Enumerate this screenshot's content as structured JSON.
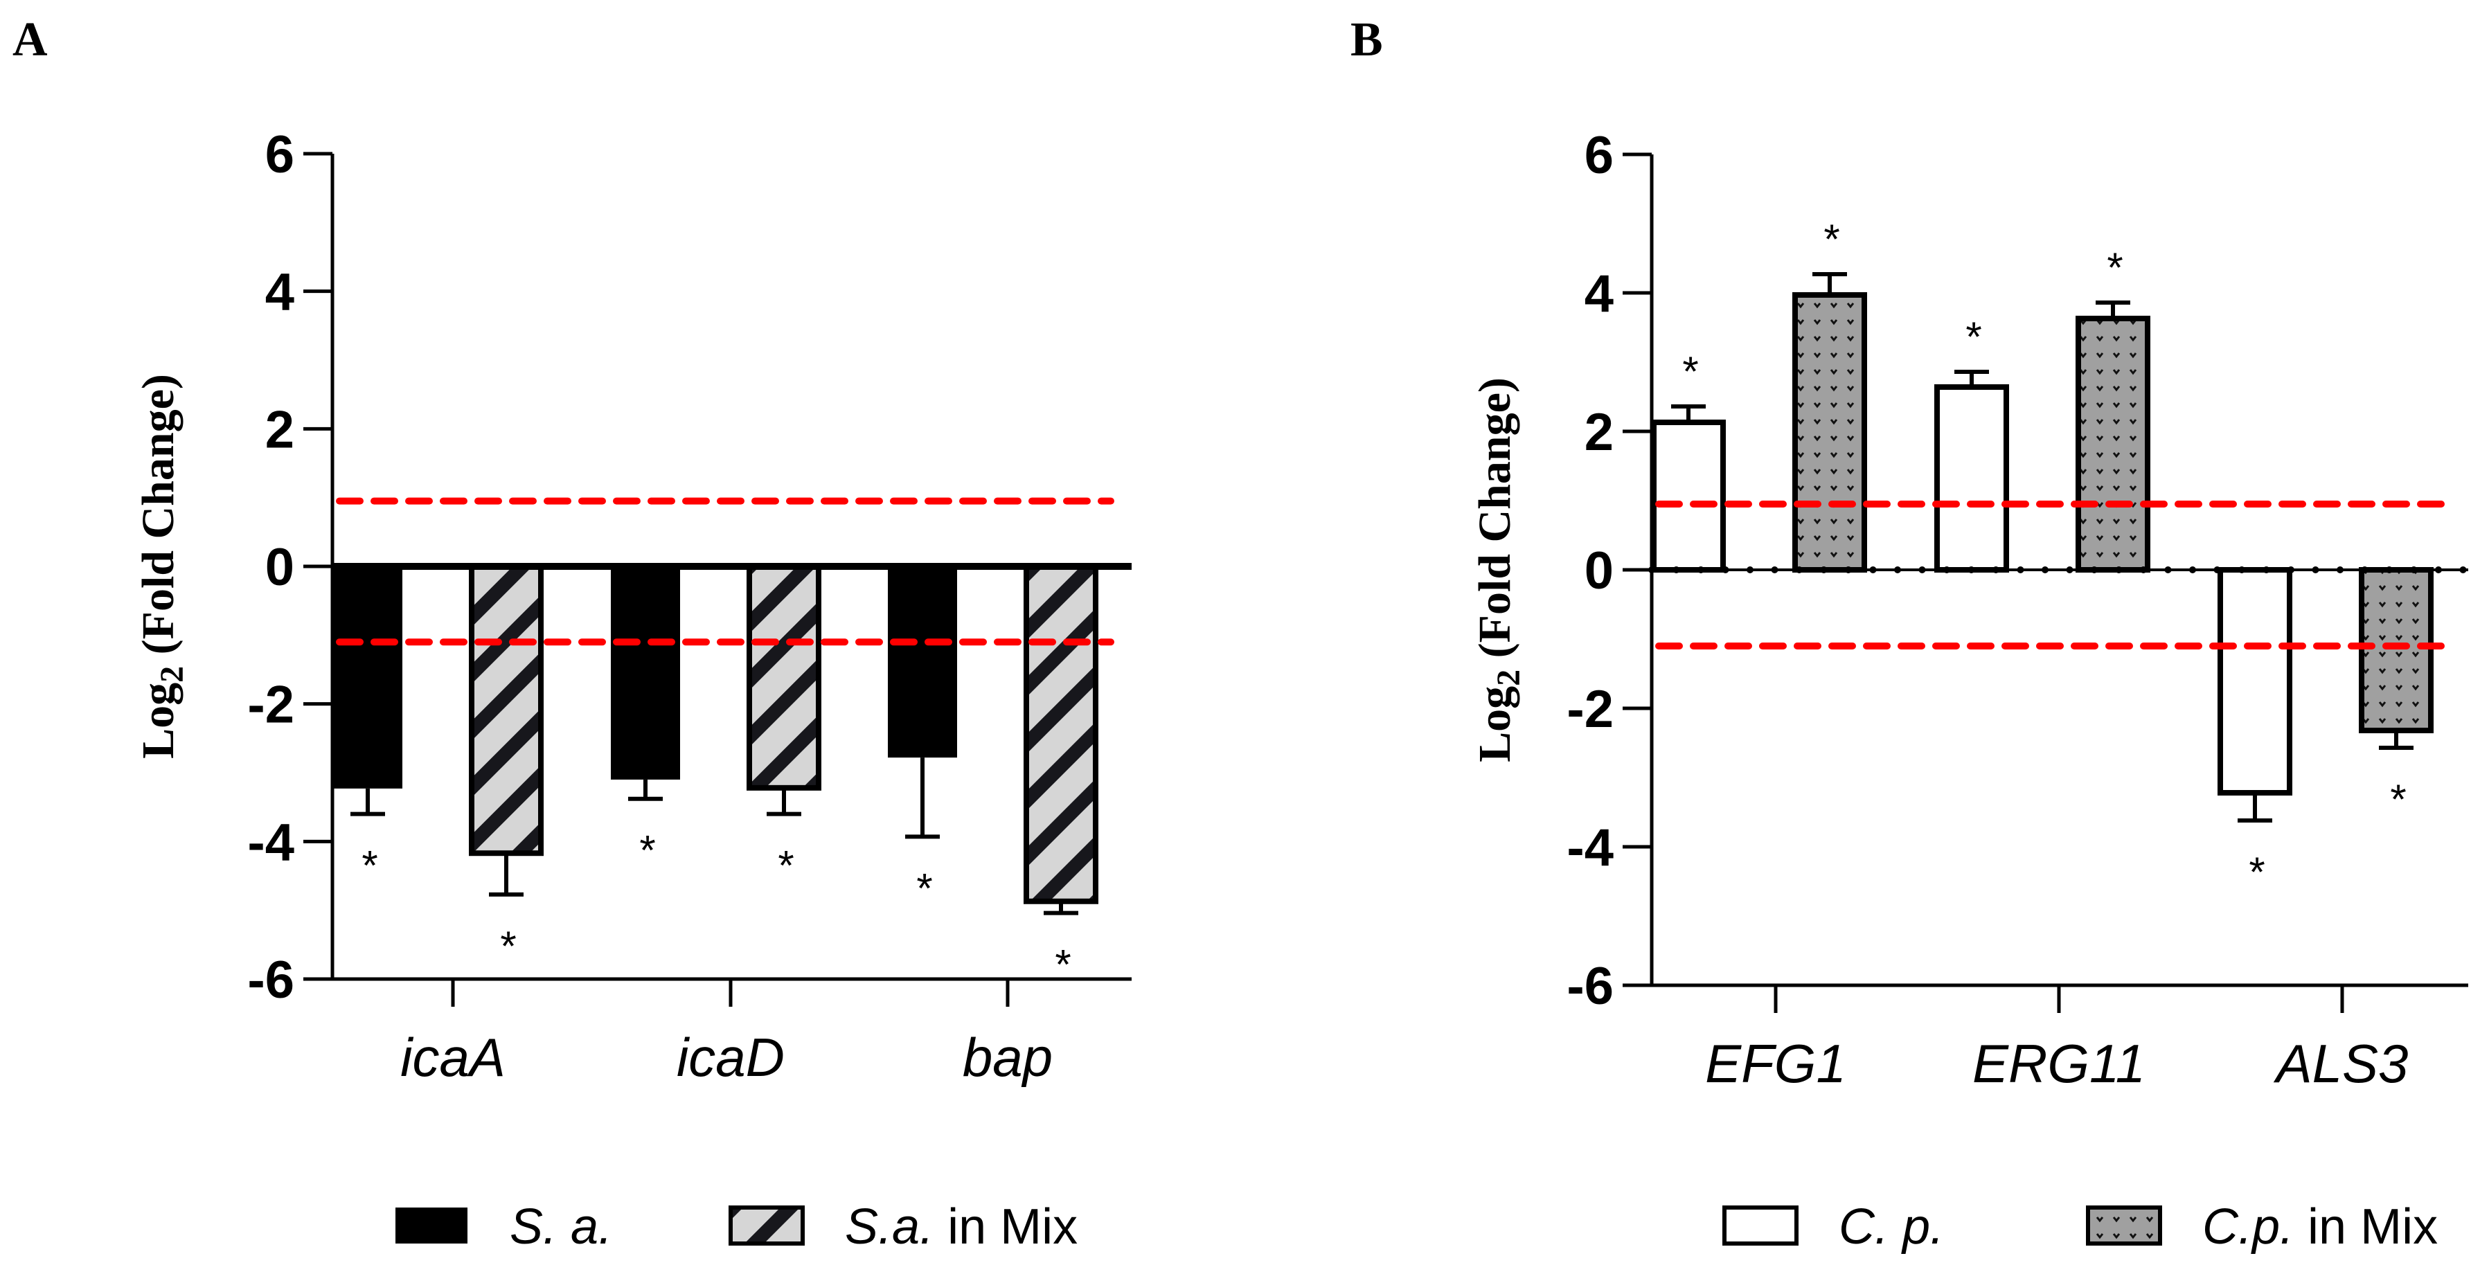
{
  "chart_data": [
    {
      "type": "bar",
      "panel": "A",
      "ylabel": "Log2 (Fold Change)",
      "ylabel_main": "Log",
      "ylabel_sub": "2",
      "ylabel_rest": " (Fold Change)",
      "ylim": [
        -6,
        6
      ],
      "yticks": [
        "-6",
        "-4",
        "-2",
        "0",
        "2",
        "4",
        "6"
      ],
      "categories": [
        "icaA",
        "icaD",
        "bap"
      ],
      "thresholds": [
        0.95,
        -1.1
      ],
      "series": [
        {
          "name": "S. a.",
          "fill": "black",
          "values": [
            -3.23,
            -3.1,
            -2.78
          ],
          "errors": [
            0.37,
            0.28,
            1.15
          ],
          "significance": [
            "*",
            "*",
            "*"
          ]
        },
        {
          "name": "S.a. in Mix",
          "fill": "hatch",
          "values": [
            -4.17,
            -3.22,
            -4.87
          ],
          "errors": [
            0.6,
            0.38,
            0.17
          ],
          "significance": [
            "*",
            "*",
            "*"
          ]
        }
      ],
      "legend": [
        "S. a.",
        "S.a. in Mix"
      ],
      "legend_mix_parts": [
        "S.a.",
        "in Mix"
      ]
    },
    {
      "type": "bar",
      "panel": "B",
      "ylabel": "Log2 (Fold Change)",
      "ylabel_main": "Log",
      "ylabel_sub": "2",
      "ylabel_rest": " (Fold Change)",
      "ylim": [
        -6,
        6
      ],
      "yticks": [
        "-6",
        "-4",
        "-2",
        "0",
        "2",
        "4",
        "6"
      ],
      "categories": [
        "EFG1",
        "ERG11",
        "ALS3"
      ],
      "thresholds": [
        0.95,
        -1.1
      ],
      "series": [
        {
          "name": "C. p.",
          "fill": "white",
          "values": [
            2.13,
            2.64,
            -3.22
          ],
          "errors": [
            0.23,
            0.22,
            0.4
          ],
          "significance": [
            "*",
            "*",
            "*"
          ]
        },
        {
          "name": "C.p. in Mix",
          "fill": "gray-dots",
          "values": [
            3.97,
            3.63,
            -2.32
          ],
          "errors": [
            0.3,
            0.23,
            0.25
          ],
          "significance": [
            "*",
            "*",
            "*"
          ]
        }
      ],
      "legend": [
        "C. p.",
        "C.p. in Mix"
      ],
      "legend_mix_parts": [
        "C.p.",
        "in Mix"
      ]
    }
  ],
  "colors": {
    "threshold": "#ff0000",
    "hatch_bg": "#d6d6d6",
    "dots_bg": "#a0a0a0"
  }
}
